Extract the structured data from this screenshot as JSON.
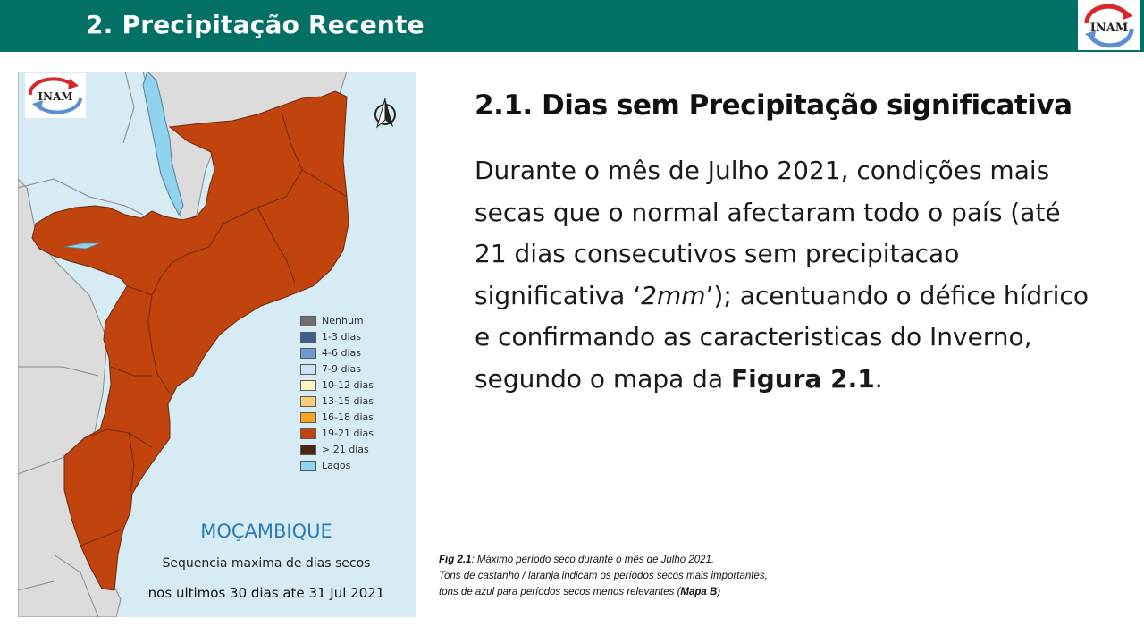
{
  "header": {
    "title": "2. Precipitação Recente",
    "bg_color": "#027064",
    "logo_text": "INAM"
  },
  "map": {
    "logo_text": "INAM",
    "country_label": "MOÇAMBIQUE",
    "subtitle": "Sequencia maxima de dias secos",
    "period": "nos ultimos 30 dias ate 31 Jul 2021",
    "fill_color": "#c1440e",
    "lake_color": "#8fd3ef",
    "sea_color": "#d6ebf3",
    "land_color": "#dcdcdc",
    "legend": [
      {
        "label": "Nenhum",
        "color": "#6e6e6e"
      },
      {
        "label": "1-3 dias",
        "color": "#3b5f8a"
      },
      {
        "label": "4-6 dias",
        "color": "#6f9bd1"
      },
      {
        "label": "7-9 dias",
        "color": "#cfe3f5"
      },
      {
        "label": "10-12 dias",
        "color": "#fbf7c3"
      },
      {
        "label": "13-15 dias",
        "color": "#f9cc7c"
      },
      {
        "label": "16-18 dias",
        "color": "#f5a623"
      },
      {
        "label": "19-21 dias",
        "color": "#c1440e"
      },
      {
        "label": "> 21 dias",
        "color": "#4a2511"
      },
      {
        "label": "Lagos",
        "color": "#8fd3ef"
      }
    ]
  },
  "section": {
    "heading": "2.1. Dias sem Precipitação significativa",
    "body_pre": "Durante o mês de Julho 2021, condições mais secas que o normal afectaram todo o país (até 21 dias consecutivos sem precipitacao significativa ‘",
    "body_em": "2mm",
    "body_mid": "’); acentuando o défice hídrico e confirmando as caracteristicas do Inverno, segundo o mapa da ",
    "body_strong": "Figura 2.1",
    "body_end": "."
  },
  "caption": {
    "fig_label": "Fig 2.1",
    "line1": ": Máximo período seco durante o mês de Julho 2021.",
    "line2": "Tons de castanho / laranja indicam os períodos secos mais importantes,",
    "line3_pre": "tons de azul para períodos secos menos relevantes (",
    "line3_strong": "Mapa B",
    "line3_end": ")"
  }
}
